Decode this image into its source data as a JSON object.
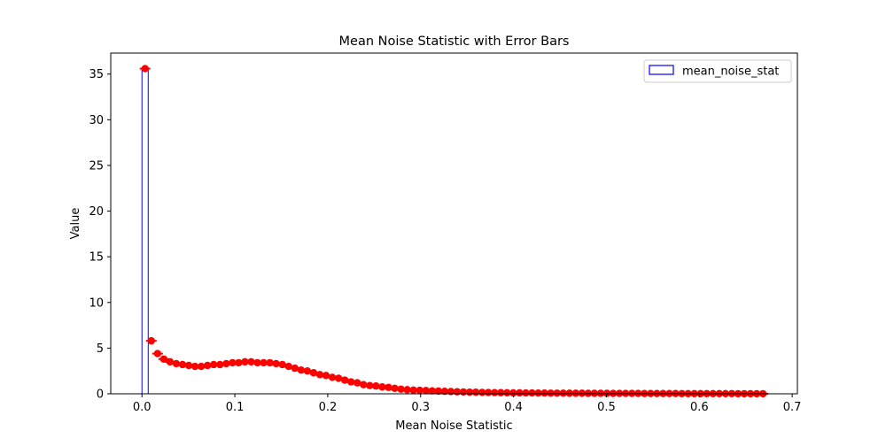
{
  "chart_data": {
    "type": "bar",
    "title": "Mean Noise Statistic with Error Bars",
    "xlabel": "Mean Noise Statistic",
    "ylabel": "Value",
    "xlim": [
      -0.0336,
      0.7056
    ],
    "ylim": [
      0,
      37.3
    ],
    "xticks": [
      0.0,
      0.1,
      0.2,
      0.3,
      0.4,
      0.5,
      0.6,
      0.7
    ],
    "xtick_labels": [
      "0.0",
      "0.1",
      "0.2",
      "0.3",
      "0.4",
      "0.5",
      "0.6",
      "0.7"
    ],
    "yticks": [
      0,
      5,
      10,
      15,
      20,
      25,
      30,
      35
    ],
    "ytick_labels": [
      "0",
      "5",
      "10",
      "15",
      "20",
      "25",
      "30",
      "35"
    ],
    "legend": {
      "entries": [
        "mean_noise_stat"
      ],
      "placement": "top-right"
    },
    "colors": {
      "bar_edge": "#0000ff",
      "errorbar": "#ff0000"
    },
    "grid": false,
    "bin_edges": [
      0.0,
      0.006719
    ],
    "series": [
      {
        "name": "mean_noise_stat",
        "x": [
          0.003359,
          0.010078,
          0.016797,
          0.023516,
          0.030234,
          0.036953,
          0.043672,
          0.050391,
          0.05711,
          0.063828,
          0.070547,
          0.077266,
          0.083985,
          0.090704,
          0.097422,
          0.104141,
          0.11086,
          0.117579,
          0.124298,
          0.131016,
          0.137735,
          0.144454,
          0.151173,
          0.157892,
          0.16461,
          0.171329,
          0.178048,
          0.184767,
          0.191486,
          0.198204,
          0.204923,
          0.211642,
          0.218361,
          0.22508,
          0.231798,
          0.238517,
          0.245236,
          0.251955,
          0.258674,
          0.265392,
          0.272111,
          0.27883,
          0.285549,
          0.292268,
          0.298986,
          0.305705,
          0.312424,
          0.319143,
          0.325862,
          0.33258,
          0.339299,
          0.346018,
          0.352737,
          0.359456,
          0.366174,
          0.372893,
          0.379612,
          0.386331,
          0.39305,
          0.399768,
          0.406487,
          0.413206,
          0.419925,
          0.426644,
          0.433362,
          0.440081,
          0.4468,
          0.453519,
          0.460238,
          0.466956,
          0.473675,
          0.480394,
          0.487113,
          0.493832,
          0.50055,
          0.507269,
          0.513988,
          0.520707,
          0.527426,
          0.534144,
          0.540863,
          0.547582,
          0.554301,
          0.56102,
          0.567738,
          0.574457,
          0.581176,
          0.587895,
          0.594614,
          0.601332,
          0.608051,
          0.61477,
          0.621489,
          0.628208,
          0.634926,
          0.641645,
          0.648364,
          0.655083,
          0.661802,
          0.66852
        ],
        "values": [
          35.6,
          5.8,
          4.4,
          3.8,
          3.5,
          3.3,
          3.2,
          3.1,
          3.0,
          3.0,
          3.1,
          3.2,
          3.2,
          3.3,
          3.4,
          3.4,
          3.5,
          3.5,
          3.4,
          3.4,
          3.4,
          3.3,
          3.2,
          3.0,
          2.8,
          2.6,
          2.5,
          2.3,
          2.1,
          2.0,
          1.8,
          1.7,
          1.5,
          1.3,
          1.2,
          1.0,
          0.9,
          0.85,
          0.75,
          0.7,
          0.6,
          0.5,
          0.45,
          0.4,
          0.38,
          0.35,
          0.32,
          0.3,
          0.27,
          0.25,
          0.22,
          0.2,
          0.18,
          0.17,
          0.15,
          0.14,
          0.13,
          0.12,
          0.11,
          0.1,
          0.1,
          0.09,
          0.09,
          0.08,
          0.08,
          0.07,
          0.07,
          0.07,
          0.06,
          0.06,
          0.06,
          0.05,
          0.05,
          0.05,
          0.05,
          0.04,
          0.04,
          0.04,
          0.04,
          0.04,
          0.03,
          0.03,
          0.03,
          0.03,
          0.03,
          0.03,
          0.02,
          0.02,
          0.02,
          0.02,
          0.02,
          0.02,
          0.02,
          0.02,
          0.02,
          0.01,
          0.01,
          0.01,
          0.01,
          0.01
        ]
      }
    ]
  }
}
